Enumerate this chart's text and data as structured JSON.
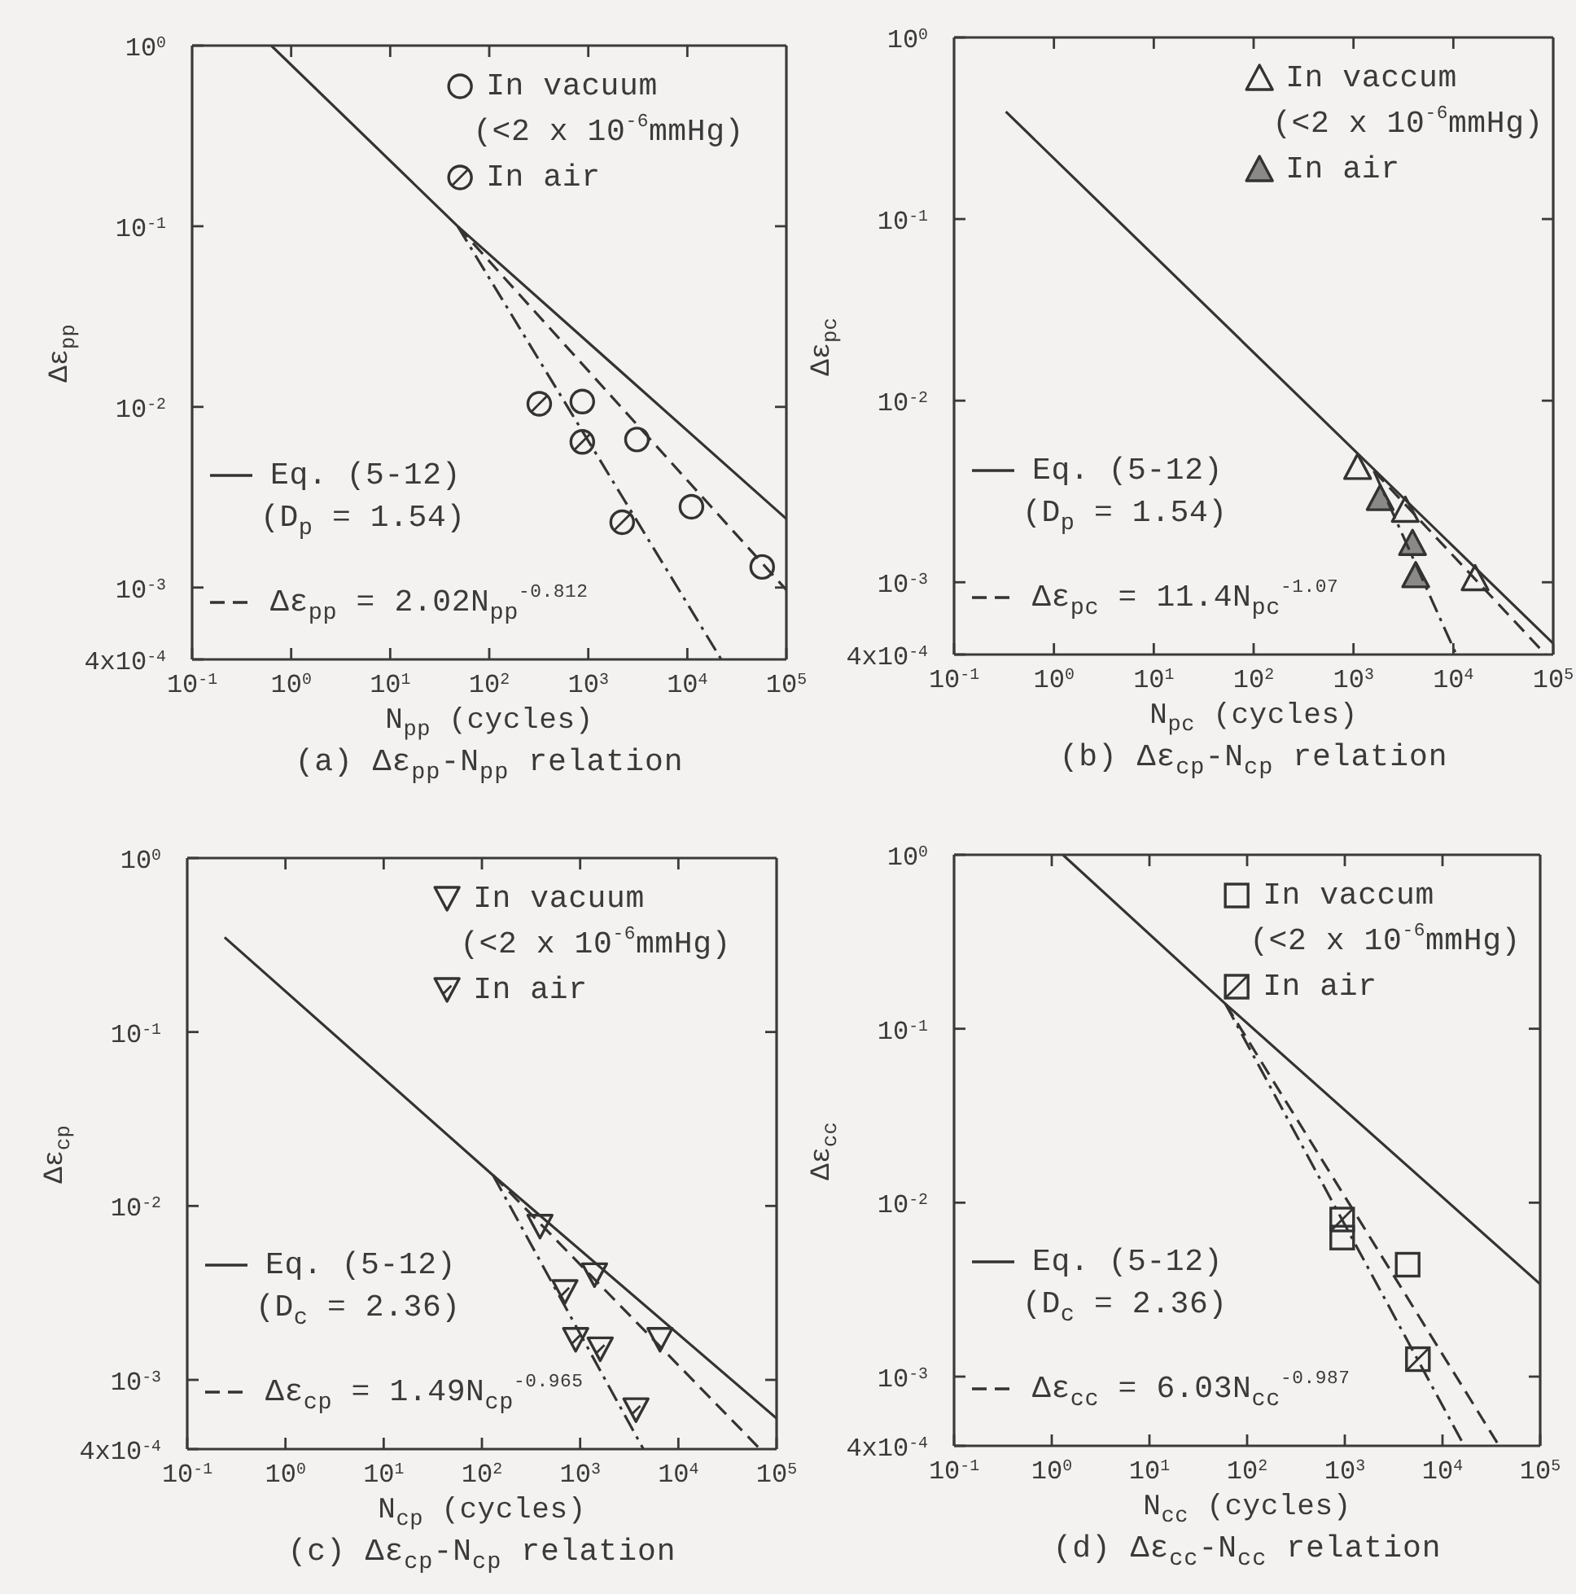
{
  "chart_data": [
    {
      "type": "scatter",
      "title": "(a) Δε$_{pp}$-N$_{pp}$ relation",
      "xlabel": "N$_{pp}$ (cycles)",
      "ylabel": "Δε$_{pp}$",
      "log": "xy",
      "legend": "top right",
      "xlim": [
        0.1,
        100000
      ],
      "xticks": [
        {
          "value": 0.1,
          "label": "10$^{-1}$"
        },
        {
          "value": 1,
          "label": "10$^{0}$"
        },
        {
          "value": 10,
          "label": "10$^{1}$"
        },
        {
          "value": 100,
          "label": "10$^{2}$"
        },
        {
          "value": 1000,
          "label": "10$^{3}$"
        },
        {
          "value": 10000,
          "label": "10$^{4}$"
        },
        {
          "value": 100000,
          "label": "10$^{5}$"
        }
      ],
      "ylim": [
        0.0004,
        1
      ],
      "yticks": [
        {
          "value": 0.0004,
          "label": "4x10$^{-4}$"
        },
        {
          "value": 0.001,
          "label": "10$^{-3}$"
        },
        {
          "value": 0.01,
          "label": "10$^{-2}$"
        },
        {
          "value": 0.1,
          "label": "10$^{-1}$"
        },
        {
          "value": 1,
          "label": "10$^{0}$"
        }
      ],
      "series": [
        {
          "name": "In vacuum\n(<2 x 10$^{-6}$mmHg)",
          "marker": "circle",
          "color": "#333333",
          "x": [
            870,
            3100,
            11000,
            57000
          ],
          "values": [
            0.0107,
            0.0066,
            0.0028,
            0.0013
          ]
        },
        {
          "name": "In air",
          "marker": "circle",
          "color": "#333333",
          "x": [
            320,
            870,
            2200
          ],
          "values": [
            0.0104,
            0.0064,
            0.0023
          ]
        },
        {
          "name": "Eq. (5-12)\n(D$_{p}$ = 1.54)",
          "type": "line",
          "line_style": "solid",
          "color": "#333333",
          "x": [
            0.63,
            48,
            100000
          ],
          "values": [
            1,
            0.1,
            0.0024
          ]
        },
        {
          "name": "Δε$_{pp}$ = 2.02N$_{pp}$$^{-0.812}$",
          "type": "line",
          "line_style": "dashed",
          "color": "#333333",
          "x": [
            48,
            100000
          ],
          "values": [
            0.1,
            0.00097
          ]
        },
        {
          "type": "line",
          "line_style": "dashdot",
          "color": "#333333",
          "x": [
            48,
            22000
          ],
          "values": [
            0.1,
            0.0004
          ]
        }
      ]
    },
    {
      "type": "scatter",
      "title": "(b) Δε$_{cp}$-N$_{cp}$ relation",
      "xlabel": "N$_{pc}$ (cycles)",
      "ylabel": "Δε$_{pc}$",
      "log": "xy",
      "legend": "top right",
      "xlim": [
        0.1,
        100000
      ],
      "xticks": [
        {
          "value": 0.1,
          "label": "10$^{-1}$"
        },
        {
          "value": 1,
          "label": "10$^{0}$"
        },
        {
          "value": 10,
          "label": "10$^{1}$"
        },
        {
          "value": 100,
          "label": "10$^{2}$"
        },
        {
          "value": 1000,
          "label": "10$^{3}$"
        },
        {
          "value": 10000,
          "label": "10$^{4}$"
        },
        {
          "value": 100000,
          "label": "10$^{5}$"
        }
      ],
      "ylim": [
        0.0004,
        1
      ],
      "yticks": [
        {
          "value": 0.0004,
          "label": "4x10$^{-4}$"
        },
        {
          "value": 0.001,
          "label": "10$^{-3}$"
        },
        {
          "value": 0.01,
          "label": "10$^{-2}$"
        },
        {
          "value": 0.1,
          "label": "10$^{-1}$"
        },
        {
          "value": 1,
          "label": "10$^{0}$"
        }
      ],
      "series": [
        {
          "name": "In vaccum\n(<2 x 10$^{-6}$mmHg)",
          "marker": "triangle",
          "color": "#333333",
          "x": [
            1100,
            3300,
            16500
          ],
          "values": [
            0.0043,
            0.0025,
            0.00105
          ]
        },
        {
          "name": "In air",
          "marker": "triangle",
          "color": "#333333",
          "x": [
            1850,
            3900,
            4200
          ],
          "values": [
            0.0029,
            0.00164,
            0.00109
          ]
        },
        {
          "name": "Eq. (5-12)\n(D$_{p}$ = 1.54)",
          "type": "line",
          "line_style": "solid",
          "color": "#333333",
          "x": [
            0.33,
            100000
          ],
          "values": [
            0.39,
            0.00046
          ]
        },
        {
          "name": "Δε$_{pc}$ = 11.4N$_{pc}$$^{-1.07}$",
          "type": "line",
          "line_style": "dashed",
          "color": "#333333",
          "x": [
            1600,
            84000
          ],
          "values": [
            0.0041,
            0.0004
          ]
        },
        {
          "type": "line",
          "line_style": "dashdot",
          "color": "#333333",
          "x": [
            1600,
            10700
          ],
          "values": [
            0.0041,
            0.0004
          ]
        }
      ]
    },
    {
      "type": "scatter",
      "title": "(c) Δε$_{cp}$-N$_{cp}$ relation",
      "xlabel": "N$_{cp}$ (cycles)",
      "ylabel": "Δε$_{cp}$",
      "log": "xy",
      "legend": "top right",
      "xlim": [
        0.1,
        100000
      ],
      "xticks": [
        {
          "value": 0.1,
          "label": "10$^{-1}$"
        },
        {
          "value": 1,
          "label": "10$^{0}$"
        },
        {
          "value": 10,
          "label": "10$^{1}$"
        },
        {
          "value": 100,
          "label": "10$^{2}$"
        },
        {
          "value": 1000,
          "label": "10$^{3}$"
        },
        {
          "value": 10000,
          "label": "10$^{4}$"
        },
        {
          "value": 100000,
          "label": "10$^{5}$"
        }
      ],
      "ylim": [
        0.0004,
        1
      ],
      "yticks": [
        {
          "value": 0.0004,
          "label": "4x10$^{-4}$"
        },
        {
          "value": 0.001,
          "label": "10$^{-3}$"
        },
        {
          "value": 0.01,
          "label": "10$^{-2}$"
        },
        {
          "value": 0.1,
          "label": "10$^{-1}$"
        },
        {
          "value": 1,
          "label": "10$^{0}$"
        }
      ],
      "series": [
        {
          "name": "In vacuum\n(<2 x 10$^{-6}$mmHg)",
          "marker": "triangle_down",
          "color": "#333333",
          "x": [
            390,
            1400,
            6500
          ],
          "values": [
            0.0076,
            0.004,
            0.0017
          ]
        },
        {
          "name": "In air",
          "marker": "triangle_down",
          "color": "#333333",
          "x": [
            700,
            900,
            1600,
            3700
          ],
          "values": [
            0.0032,
            0.0017,
            0.0015,
            0.00067
          ]
        },
        {
          "name": "Eq. (5-12)\n(D$_{c}$ = 2.36)",
          "type": "line",
          "line_style": "solid",
          "color": "#333333",
          "x": [
            0.24,
            130,
            100000
          ],
          "values": [
            0.35,
            0.015,
            0.0006
          ]
        },
        {
          "name": "Δε$_{cp}$ = 1.49N$_{cp}$$^{-0.965}$",
          "type": "line",
          "line_style": "dashed",
          "color": "#333333",
          "x": [
            130,
            68000
          ],
          "values": [
            0.015,
            0.0004
          ]
        },
        {
          "type": "line",
          "line_style": "dashdot",
          "color": "#333333",
          "x": [
            130,
            4400
          ],
          "values": [
            0.015,
            0.0004
          ]
        }
      ]
    },
    {
      "type": "scatter",
      "title": "(d) Δε$_{cc}$-N$_{cc}$ relation",
      "xlabel": "N$_{cc}$ (cycles)",
      "ylabel": "Δε$_{cc}$",
      "log": "xy",
      "legend": "top right",
      "xlim": [
        0.1,
        100000
      ],
      "xticks": [
        {
          "value": 0.1,
          "label": "10$^{-1}$"
        },
        {
          "value": 1,
          "label": "10$^{0}$"
        },
        {
          "value": 10,
          "label": "10$^{1}$"
        },
        {
          "value": 100,
          "label": "10$^{2}$"
        },
        {
          "value": 1000,
          "label": "10$^{3}$"
        },
        {
          "value": 10000,
          "label": "10$^{4}$"
        },
        {
          "value": 100000,
          "label": "10$^{5}$"
        }
      ],
      "ylim": [
        0.0004,
        1
      ],
      "yticks": [
        {
          "value": 0.0004,
          "label": "4x10$^{-4}$"
        },
        {
          "value": 0.001,
          "label": "10$^{-3}$"
        },
        {
          "value": 0.01,
          "label": "10$^{-2}$"
        },
        {
          "value": 0.1,
          "label": "10$^{-1}$"
        },
        {
          "value": 1,
          "label": "10$^{0}$"
        }
      ],
      "series": [
        {
          "name": "In vaccum\n(<2 x 10$^{-6}$mmHg)",
          "marker": "square",
          "color": "#333333",
          "x": [
            940,
            4400
          ],
          "values": [
            0.0063,
            0.0044
          ]
        },
        {
          "name": "In air",
          "marker": "square",
          "color": "#333333",
          "x": [
            940,
            5600
          ],
          "values": [
            0.008,
            0.00126
          ]
        },
        {
          "name": "Eq. (5-12)\n(D$_{c}$ = 2.36)",
          "type": "line",
          "line_style": "solid",
          "color": "#333333",
          "x": [
            1.3,
            60,
            100000
          ],
          "values": [
            1,
            0.139,
            0.0034
          ]
        },
        {
          "name": "Δε$_{cc}$ = 6.03N$_{cc}$$^{-0.987}$",
          "type": "line",
          "line_style": "dashed",
          "color": "#333333",
          "x": [
            60,
            38000
          ],
          "values": [
            0.139,
            0.0004
          ]
        },
        {
          "type": "line",
          "line_style": "dashdot",
          "color": "#333333",
          "x": [
            60,
            16700
          ],
          "values": [
            0.139,
            0.0004
          ]
        }
      ]
    }
  ]
}
